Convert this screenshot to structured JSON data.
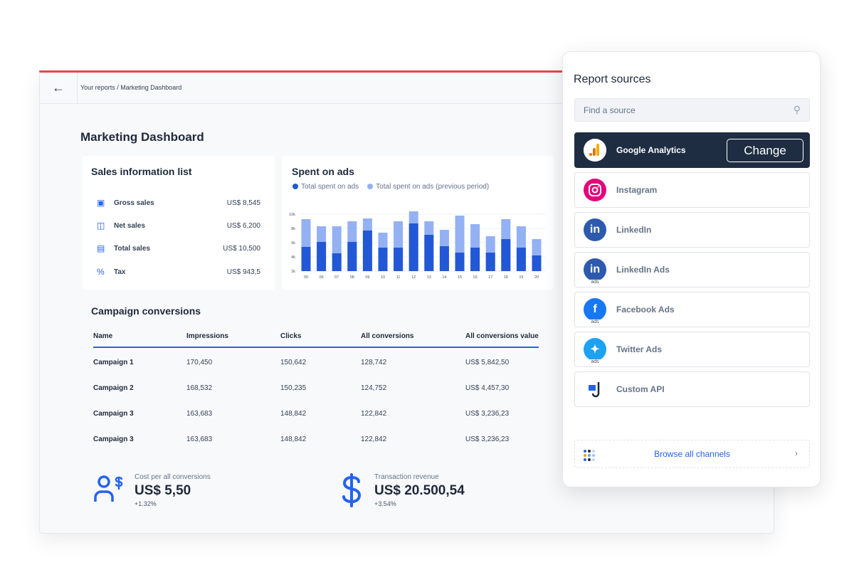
{
  "header": {
    "breadcrumb": "Your reports / Marketing Dashboard",
    "title": "Marketing Dashboard"
  },
  "sales": {
    "title": "Sales information list",
    "items": [
      {
        "icon": "cash-register-icon",
        "label": "Gross sales",
        "value": "US$ 8,545"
      },
      {
        "icon": "shopping-bag-icon",
        "label": "Net sales",
        "value": "US$ 6,200"
      },
      {
        "icon": "money-stack-icon",
        "label": "Total sales",
        "value": "US$ 10,500"
      },
      {
        "icon": "percent-icon",
        "label": "Tax",
        "value": "US$ 943,5"
      }
    ]
  },
  "chart_data": {
    "type": "bar",
    "stacked": "overlay",
    "title": "Spent on ads",
    "categories": [
      "05",
      "06",
      "07",
      "08",
      "09",
      "10",
      "11",
      "12",
      "13",
      "14",
      "15",
      "16",
      "17",
      "18",
      "19",
      "20"
    ],
    "yticks": [
      "2k",
      "4k",
      "6k",
      "8k",
      "10k"
    ],
    "ylim": [
      2,
      10.5
    ],
    "grid": true,
    "legend": "top-left",
    "series": [
      {
        "name": "Total spent on ads",
        "color": "#2258d6",
        "values": [
          5.4,
          6.1,
          4.5,
          6.1,
          7.7,
          5.3,
          5.3,
          8.7,
          7.1,
          5.5,
          4.6,
          5.3,
          4.6,
          6.5,
          5.3,
          4.2
        ]
      },
      {
        "name": "Total spent on ads (previous period)",
        "color": "#93b1f3",
        "values": [
          9.3,
          8.3,
          8.3,
          9.0,
          9.4,
          7.4,
          9.0,
          10.4,
          9.0,
          7.8,
          9.8,
          8.6,
          6.9,
          9.3,
          8.3,
          6.5
        ]
      }
    ]
  },
  "campaigns": {
    "title": "Campaign conversions",
    "columns": [
      "Name",
      "Impressions",
      "Clicks",
      "All conversions",
      "All conversions value"
    ],
    "rows": [
      [
        "Campaign 1",
        "170,450",
        "150,642",
        "128,742",
        "US$ 5,842,50"
      ],
      [
        "Campaign 2",
        "168,532",
        "150,235",
        "124,752",
        "US$ 4,457,30"
      ],
      [
        "Campaign 3",
        "163,683",
        "148,842",
        "122,842",
        "US$ 3,236,23"
      ],
      [
        "Campaign 3",
        "163,683",
        "148,842",
        "122,842",
        "US$ 3,236,23"
      ]
    ]
  },
  "kpis": [
    {
      "icon": "user-dollar-icon",
      "label": "Cost per all conversions",
      "value": "US$ 5,50",
      "change": "+1.32%"
    },
    {
      "icon": "dollar-icon",
      "label": "Transaction revenue",
      "value": "US$ 20.500,54",
      "change": "+3.54%"
    }
  ],
  "panel": {
    "title": "Report sources",
    "search_placeholder": "Find a source",
    "change_label": "Change",
    "browse_label": "Browse all channels",
    "sources": [
      {
        "name": "Google Analytics",
        "selected": true
      },
      {
        "name": "Instagram"
      },
      {
        "name": "LinkedIn"
      },
      {
        "name": "LinkedIn Ads"
      },
      {
        "name": "Facebook Ads"
      },
      {
        "name": "Twitter Ads"
      },
      {
        "name": "Custom API"
      }
    ],
    "ads_badge": "ads"
  },
  "colors": {
    "accent": "#2563eb",
    "top_bar": "#ef4444",
    "selected_bg": "#1e2d42"
  }
}
